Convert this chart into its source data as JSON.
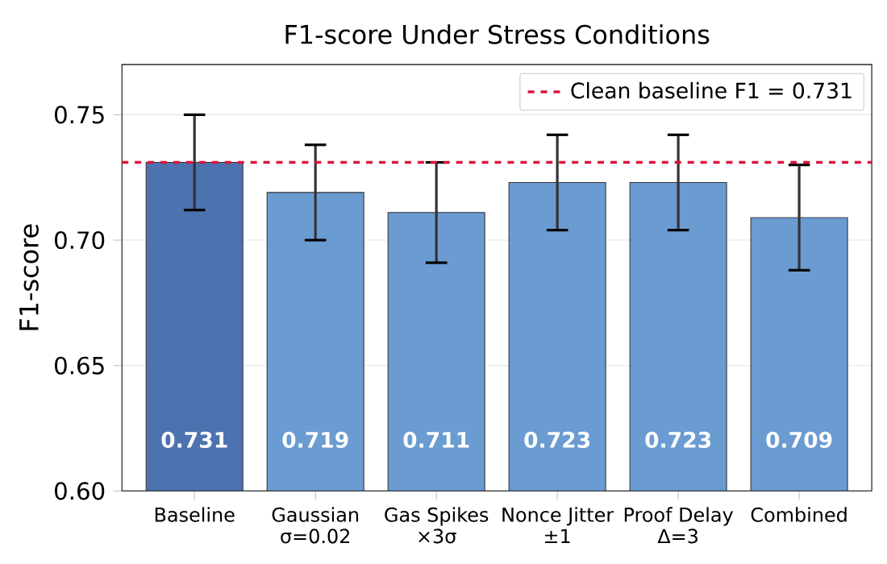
{
  "chart_data": {
    "type": "bar",
    "title": "F1-score Under Stress Conditions",
    "ylabel": "F1-score",
    "categories": [
      "Baseline",
      "Gaussian\nσ=0.02",
      "Gas Spikes\n×3σ",
      "Nonce Jitter\n±1",
      "Proof Delay\nΔ=3",
      "Combined"
    ],
    "values": [
      0.731,
      0.719,
      0.711,
      0.723,
      0.723,
      0.709
    ],
    "errors": [
      0.019,
      0.019,
      0.02,
      0.019,
      0.019,
      0.021
    ],
    "colors": [
      "#4c72b0",
      "#6a9bd1",
      "#6a9bd1",
      "#6a9bd1",
      "#6a9bd1",
      "#6a9bd1"
    ],
    "ylim": [
      0.6,
      0.77
    ],
    "yticks": [
      {
        "value": 0.6,
        "label": "0.60"
      },
      0.65,
      {
        "value": 0.7,
        "label": "0.70"
      },
      0.75
    ],
    "ref_lines": [
      {
        "axis": "y",
        "value": 0.731,
        "label": "Clean baseline F1 = 0.731",
        "color": "#dc143c",
        "line_style": "dashed"
      }
    ],
    "data_labels": true,
    "grid": "y",
    "legend": "top right"
  }
}
